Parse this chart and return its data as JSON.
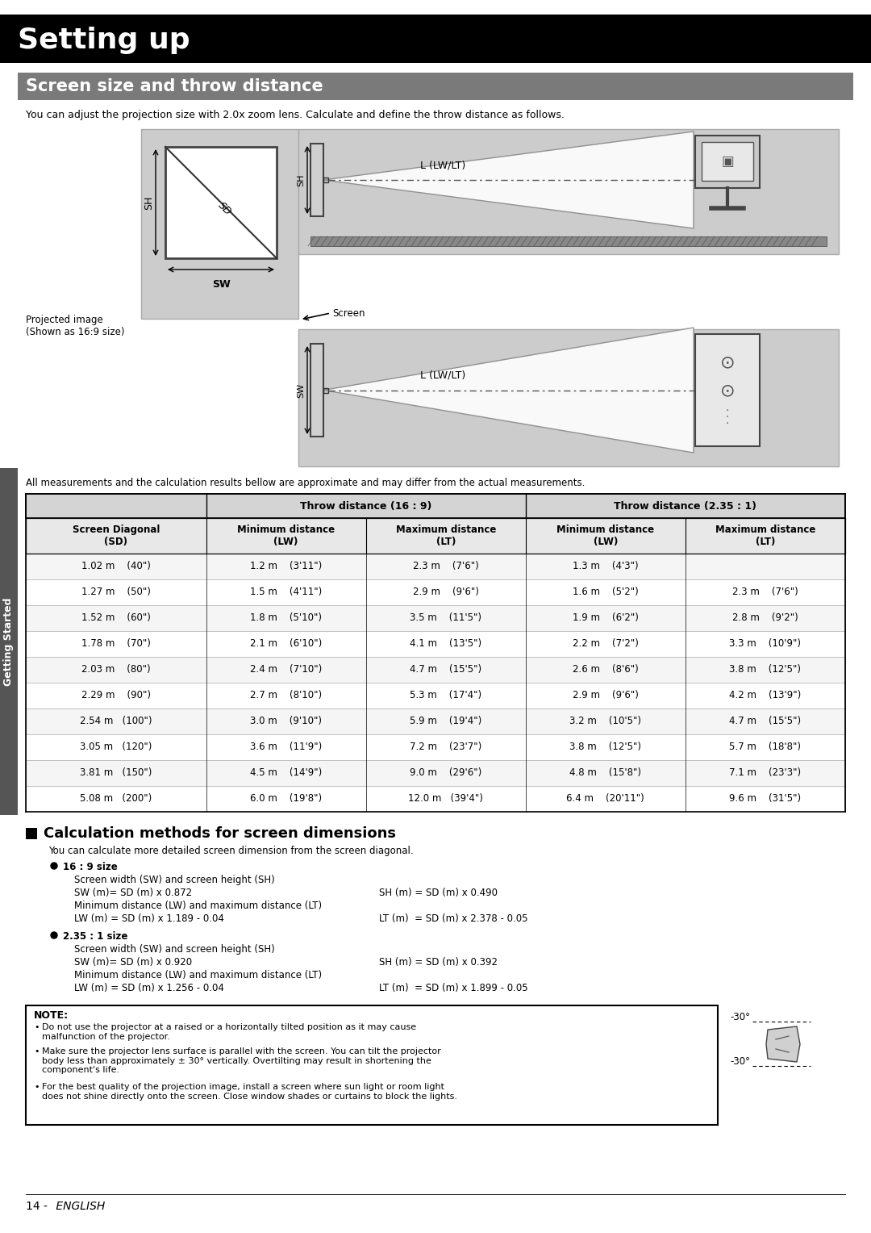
{
  "title": "Setting up",
  "subtitle": "Screen size and throw distance",
  "intro_text": "You can adjust the projection size with 2.0x zoom lens. Calculate and define the throw distance as follows.",
  "projected_image_label": "Projected image\n(Shown as 16:9 size)",
  "screen_label": "Screen",
  "all_measurements_note": "All measurements and the calculation results bellow are approximate and may differ from the actual measurements.",
  "table_header1": "Throw distance (16 : 9)",
  "table_header2": "Throw distance (2.35 : 1)",
  "col_headers": [
    "Screen Diagonal\n(SD)",
    "Minimum distance\n(LW)",
    "Maximum distance\n(LT)",
    "Minimum distance\n(LW)",
    "Maximum distance\n(LT)"
  ],
  "table_data": [
    [
      "1.02 m    (40\")",
      "1.2 m    (3'11\")",
      "2.3 m    (7'6\")",
      "1.3 m    (4'3\")",
      ""
    ],
    [
      "1.27 m    (50\")",
      "1.5 m    (4'11\")",
      "2.9 m    (9'6\")",
      "1.6 m    (5'2\")",
      "2.3 m    (7'6\")"
    ],
    [
      "1.52 m    (60\")",
      "1.8 m    (5'10\")",
      "3.5 m    (11'5\")",
      "1.9 m    (6'2\")",
      "2.8 m    (9'2\")"
    ],
    [
      "1.78 m    (70\")",
      "2.1 m    (6'10\")",
      "4.1 m    (13'5\")",
      "2.2 m    (7'2\")",
      "3.3 m    (10'9\")"
    ],
    [
      "2.03 m    (80\")",
      "2.4 m    (7'10\")",
      "4.7 m    (15'5\")",
      "2.6 m    (8'6\")",
      "3.8 m    (12'5\")"
    ],
    [
      "2.29 m    (90\")",
      "2.7 m    (8'10\")",
      "5.3 m    (17'4\")",
      "2.9 m    (9'6\")",
      "4.2 m    (13'9\")"
    ],
    [
      "2.54 m   (100\")",
      "3.0 m    (9'10\")",
      "5.9 m    (19'4\")",
      "3.2 m    (10'5\")",
      "4.7 m    (15'5\")"
    ],
    [
      "3.05 m   (120\")",
      "3.6 m    (11'9\")",
      "7.2 m    (23'7\")",
      "3.8 m    (12'5\")",
      "5.7 m    (18'8\")"
    ],
    [
      "3.81 m   (150\")",
      "4.5 m    (14'9\")",
      "9.0 m    (29'6\")",
      "4.8 m    (15'8\")",
      "7.1 m    (23'3\")"
    ],
    [
      "5.08 m   (200\")",
      "6.0 m    (19'8\")",
      "12.0 m   (39'4\")",
      "6.4 m    (20'11\")",
      "9.6 m    (31'5\")"
    ]
  ],
  "calc_section_title": "Calculation methods for screen dimensions",
  "calc_intro": "You can calculate more detailed screen dimension from the screen diagonal.",
  "ratio1_title": "16 : 9 size",
  "ratio1_line1": "Screen width (SW) and screen height (SH)",
  "ratio1_line2a": "SW (m)= SD (m) x 0.872",
  "ratio1_line2b": "SH (m) = SD (m) x 0.490",
  "ratio1_line3": "Minimum distance (LW) and maximum distance (LT)",
  "ratio1_line4a": "LW (m) = SD (m) x 1.189 - 0.04",
  "ratio1_line4b": "LT (m)  = SD (m) x 2.378 - 0.05",
  "ratio2_title": "2.35 : 1 size",
  "ratio2_line1": "Screen width (SW) and screen height (SH)",
  "ratio2_line2a": "SW (m)= SD (m) x 0.920",
  "ratio2_line2b": "SH (m) = SD (m) x 0.392",
  "ratio2_line3": "Minimum distance (LW) and maximum distance (LT)",
  "ratio2_line4a": "LW (m) = SD (m) x 1.256 - 0.04",
  "ratio2_line4b": "LT (m)  = SD (m) x 1.899 - 0.05",
  "note_title": "NOTE:",
  "note_bullets": [
    "Do not use the projector at a raised or a horizontally tilted position as it may cause\nmalfunction of the projector.",
    "Make sure the projector lens surface is parallel with the screen. You can tilt the projector\nbody less than approximately ± 30° vertically. Overtilting may result in shortening the\ncomponent's life.",
    "For the best quality of the projection image, install a screen where sun light or room light\ndoes not shine directly onto the screen. Close window shades or curtains to block the lights."
  ],
  "footer_num": "14 -",
  "footer_txt": " ENGLISH",
  "bg_color": "#ffffff"
}
